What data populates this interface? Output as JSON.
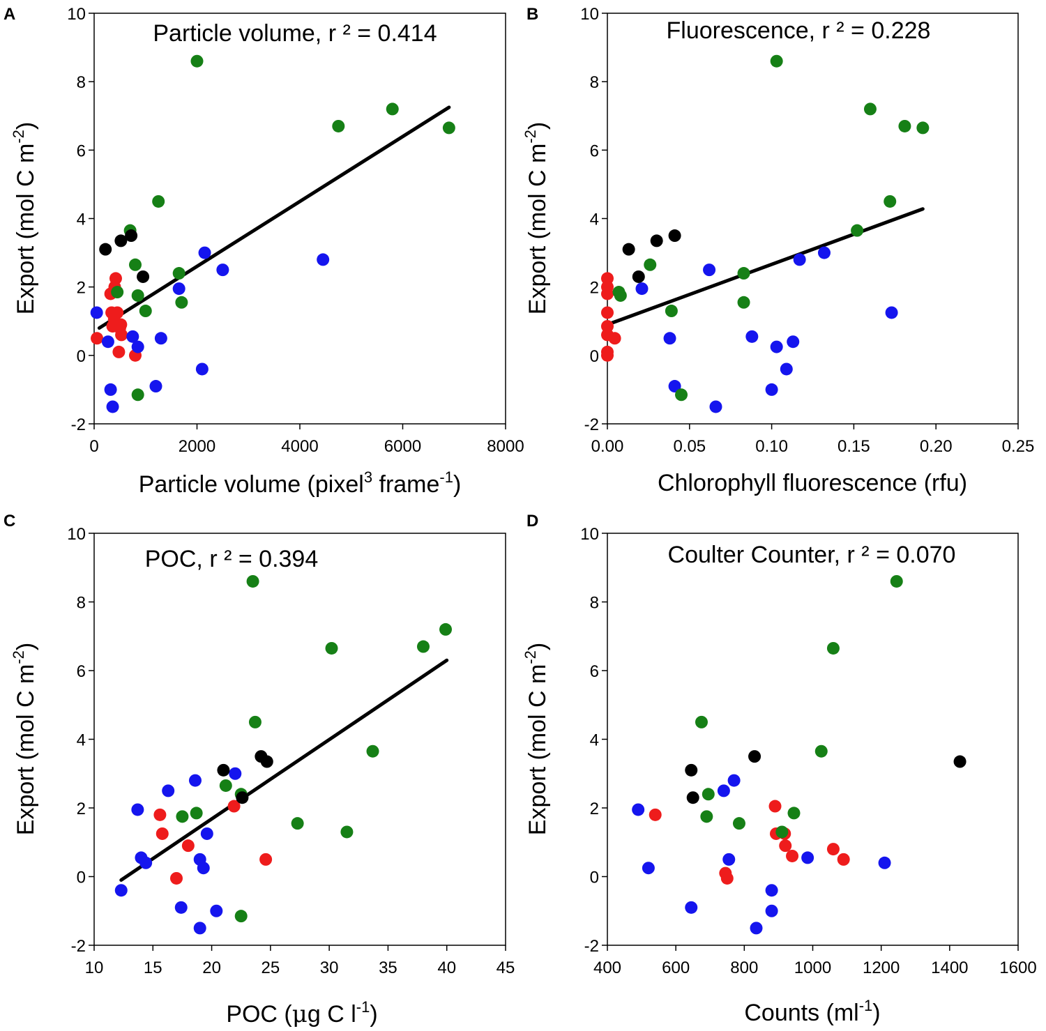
{
  "colors": {
    "red": "#ee1c1c",
    "blue": "#1515ee",
    "green": "#168016",
    "black": "#000000",
    "fit": "#000000"
  },
  "chart_data": [
    {
      "type": "scatter",
      "letter": "A",
      "title": "Particle volume, r ² = 0.414",
      "xlabel": {
        "main": "Particle volume (pixel",
        "sup1": "3",
        "mid": " frame",
        "sup2": "-1",
        "end": ")"
      },
      "ylabel": {
        "main": "Export (mol C m",
        "sup": "-2",
        "end": ")"
      },
      "xlim": [
        0,
        8000
      ],
      "ylim": [
        -2,
        10
      ],
      "xticks": [
        "0",
        "2000",
        "4000",
        "6000",
        "8000"
      ],
      "xtick_values": [
        0,
        2000,
        4000,
        6000,
        8000
      ],
      "yticks": [
        "-2",
        "0",
        "2",
        "4",
        "6",
        "8",
        "10"
      ],
      "ytick_values": [
        -2,
        0,
        2,
        4,
        6,
        8,
        10
      ],
      "fit_line": [
        [
          100,
          0.8
        ],
        [
          6900,
          7.25
        ]
      ],
      "series": [
        {
          "name": "red",
          "points": [
            [
              55,
              0.5
            ],
            [
              320,
              1.8
            ],
            [
              340,
              1.25
            ],
            [
              360,
              0.85
            ],
            [
              390,
              1.05
            ],
            [
              400,
              2.0
            ],
            [
              420,
              2.25
            ],
            [
              450,
              1.25
            ],
            [
              480,
              0.1
            ],
            [
              500,
              0.8
            ],
            [
              520,
              0.9
            ],
            [
              530,
              0.6
            ],
            [
              800,
              0.0
            ]
          ]
        },
        {
          "name": "blue",
          "points": [
            [
              50,
              1.25
            ],
            [
              270,
              0.4
            ],
            [
              320,
              -1.0
            ],
            [
              360,
              -1.5
            ],
            [
              750,
              0.55
            ],
            [
              850,
              0.25
            ],
            [
              1200,
              -0.9
            ],
            [
              1300,
              0.5
            ],
            [
              1650,
              1.95
            ],
            [
              2100,
              -0.4
            ],
            [
              2150,
              3.0
            ],
            [
              2500,
              2.5
            ],
            [
              4450,
              2.8
            ]
          ]
        },
        {
          "name": "green",
          "points": [
            [
              450,
              1.85
            ],
            [
              700,
              3.65
            ],
            [
              800,
              2.65
            ],
            [
              850,
              1.75
            ],
            [
              850,
              -1.15
            ],
            [
              1000,
              1.3
            ],
            [
              1250,
              4.5
            ],
            [
              1650,
              2.4
            ],
            [
              1700,
              1.55
            ],
            [
              2000,
              8.6
            ],
            [
              4750,
              6.7
            ],
            [
              5800,
              7.2
            ],
            [
              6900,
              6.65
            ]
          ]
        },
        {
          "name": "black",
          "points": [
            [
              220,
              3.1
            ],
            [
              520,
              3.35
            ],
            [
              720,
              3.5
            ],
            [
              950,
              2.3
            ]
          ]
        }
      ]
    },
    {
      "type": "scatter",
      "letter": "B",
      "title": "Fluorescence, r ² = 0.228",
      "xlabel": {
        "main": "Chlorophyll fluorescence (rfu)"
      },
      "ylabel": {
        "main": "Export (mol C m",
        "sup": "-2",
        "end": ")"
      },
      "xlim": [
        0,
        0.25
      ],
      "ylim": [
        -2,
        10
      ],
      "xticks": [
        "0.00",
        "0.05",
        "0.10",
        "0.15",
        "0.20",
        "0.25"
      ],
      "xtick_values": [
        0,
        0.05,
        0.1,
        0.15,
        0.2,
        0.25
      ],
      "yticks": [
        "-2",
        "0",
        "2",
        "4",
        "6",
        "8",
        "10"
      ],
      "ytick_values": [
        -2,
        0,
        2,
        4,
        6,
        8,
        10
      ],
      "fit_line": [
        [
          0,
          0.9
        ],
        [
          0.192,
          4.28
        ]
      ],
      "series": [
        {
          "name": "red",
          "points": [
            [
              0.0,
              2.25
            ],
            [
              0.0,
              2.0
            ],
            [
              0.0,
              1.8
            ],
            [
              0.0,
              1.25
            ],
            [
              0.0,
              0.85
            ],
            [
              0.0,
              0.6
            ],
            [
              0.0,
              0.1
            ],
            [
              0.0,
              0.0
            ],
            [
              0.0045,
              0.5
            ]
          ]
        },
        {
          "name": "blue",
          "points": [
            [
              0.021,
              1.95
            ],
            [
              0.038,
              0.5
            ],
            [
              0.041,
              -0.9
            ],
            [
              0.062,
              2.5
            ],
            [
              0.066,
              -1.5
            ],
            [
              0.088,
              0.55
            ],
            [
              0.1,
              -1.0
            ],
            [
              0.103,
              0.25
            ],
            [
              0.109,
              -0.4
            ],
            [
              0.113,
              0.4
            ],
            [
              0.117,
              2.8
            ],
            [
              0.132,
              3.0
            ],
            [
              0.173,
              1.25
            ]
          ]
        },
        {
          "name": "green",
          "points": [
            [
              0.007,
              1.85
            ],
            [
              0.008,
              1.75
            ],
            [
              0.026,
              2.65
            ],
            [
              0.039,
              1.3
            ],
            [
              0.045,
              -1.15
            ],
            [
              0.083,
              2.4
            ],
            [
              0.083,
              1.55
            ],
            [
              0.103,
              8.6
            ],
            [
              0.152,
              3.65
            ],
            [
              0.16,
              7.2
            ],
            [
              0.172,
              4.5
            ],
            [
              0.181,
              6.7
            ],
            [
              0.192,
              6.65
            ]
          ]
        },
        {
          "name": "black",
          "points": [
            [
              0.013,
              3.1
            ],
            [
              0.019,
              2.3
            ],
            [
              0.03,
              3.35
            ],
            [
              0.041,
              3.5
            ]
          ]
        }
      ]
    },
    {
      "type": "scatter",
      "letter": "C",
      "title": "POC, r ² = 0.394",
      "xlabel": {
        "main": "POC (",
        "greek": "μ",
        "mid": "g C l",
        "sup": "-1",
        "end": ")"
      },
      "ylabel": {
        "main": "Export (mol C m",
        "sup": "-2",
        "end": ")"
      },
      "xlim": [
        10,
        45
      ],
      "ylim": [
        -2,
        10
      ],
      "xticks": [
        "10",
        "15",
        "20",
        "25",
        "30",
        "35",
        "40",
        "45"
      ],
      "xtick_values": [
        10,
        15,
        20,
        25,
        30,
        35,
        40,
        45
      ],
      "yticks": [
        "-2",
        "0",
        "2",
        "4",
        "6",
        "8",
        "10"
      ],
      "ytick_values": [
        -2,
        0,
        2,
        4,
        6,
        8,
        10
      ],
      "fit_line": [
        [
          12.3,
          -0.1
        ],
        [
          40,
          6.3
        ]
      ],
      "series": [
        {
          "name": "red",
          "points": [
            [
              15.6,
              1.8
            ],
            [
              15.8,
              1.25
            ],
            [
              18.0,
              0.9
            ],
            [
              17.0,
              -0.05
            ],
            [
              21.9,
              2.05
            ],
            [
              24.6,
              0.5
            ]
          ]
        },
        {
          "name": "blue",
          "points": [
            [
              12.3,
              -0.4
            ],
            [
              13.7,
              1.95
            ],
            [
              14.0,
              0.55
            ],
            [
              14.4,
              0.4
            ],
            [
              16.3,
              2.5
            ],
            [
              17.4,
              -0.9
            ],
            [
              18.6,
              2.8
            ],
            [
              19.0,
              0.5
            ],
            [
              19.0,
              -1.5
            ],
            [
              19.3,
              0.25
            ],
            [
              19.6,
              1.25
            ],
            [
              20.4,
              -1.0
            ],
            [
              22.0,
              3.0
            ]
          ]
        },
        {
          "name": "green",
          "points": [
            [
              17.5,
              1.75
            ],
            [
              18.7,
              1.85
            ],
            [
              21.2,
              2.65
            ],
            [
              22.5,
              2.4
            ],
            [
              22.5,
              -1.15
            ],
            [
              23.5,
              8.6
            ],
            [
              23.7,
              4.5
            ],
            [
              27.3,
              1.55
            ],
            [
              30.2,
              6.65
            ],
            [
              31.5,
              1.3
            ],
            [
              33.7,
              3.65
            ],
            [
              38.0,
              6.7
            ],
            [
              39.9,
              7.2
            ]
          ]
        },
        {
          "name": "black",
          "points": [
            [
              21.0,
              3.1
            ],
            [
              22.6,
              2.3
            ],
            [
              24.2,
              3.5
            ],
            [
              24.7,
              3.35
            ]
          ]
        }
      ]
    },
    {
      "type": "scatter",
      "letter": "D",
      "title": "Coulter Counter, r ² = 0.070",
      "xlabel": {
        "main": "Counts (ml",
        "sup": "-1",
        "end": ")"
      },
      "ylabel": {
        "main": "Export (mol C m",
        "sup": "-2",
        "end": ")"
      },
      "xlim": [
        400,
        1600
      ],
      "ylim": [
        -2,
        10
      ],
      "xticks": [
        "400",
        "600",
        "800",
        "1000",
        "1200",
        "1400",
        "1600"
      ],
      "xtick_values": [
        400,
        600,
        800,
        1000,
        1200,
        1400,
        1600
      ],
      "yticks": [
        "-2",
        "0",
        "2",
        "4",
        "6",
        "8",
        "10"
      ],
      "ytick_values": [
        -2,
        0,
        2,
        4,
        6,
        8,
        10
      ],
      "series": [
        {
          "name": "red",
          "points": [
            [
              540,
              1.8
            ],
            [
              745,
              0.1
            ],
            [
              750,
              -0.05
            ],
            [
              890,
              2.05
            ],
            [
              893,
              1.25
            ],
            [
              918,
              1.25
            ],
            [
              920,
              0.9
            ],
            [
              940,
              0.6
            ],
            [
              1060,
              0.8
            ],
            [
              1090,
              0.5
            ]
          ]
        },
        {
          "name": "blue",
          "points": [
            [
              490,
              1.95
            ],
            [
              520,
              0.25
            ],
            [
              645,
              -0.9
            ],
            [
              740,
              2.5
            ],
            [
              755,
              0.5
            ],
            [
              770,
              2.8
            ],
            [
              835,
              -1.5
            ],
            [
              880,
              -0.4
            ],
            [
              880,
              -1.0
            ],
            [
              985,
              0.55
            ],
            [
              1210,
              0.4
            ]
          ]
        },
        {
          "name": "green",
          "points": [
            [
              675,
              4.5
            ],
            [
              690,
              1.75
            ],
            [
              695,
              2.4
            ],
            [
              785,
              1.55
            ],
            [
              910,
              1.3
            ],
            [
              945,
              1.85
            ],
            [
              1025,
              3.65
            ],
            [
              1060,
              6.65
            ],
            [
              1245,
              8.6
            ]
          ]
        },
        {
          "name": "black",
          "points": [
            [
              645,
              3.1
            ],
            [
              650,
              2.3
            ],
            [
              830,
              3.5
            ],
            [
              1430,
              3.35
            ]
          ]
        }
      ]
    }
  ]
}
